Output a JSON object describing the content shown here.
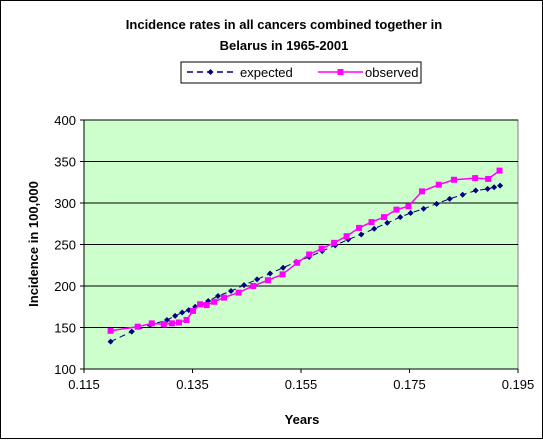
{
  "chart_data": {
    "type": "line",
    "title_lines": [
      "Incidence rates in all cancers combined together in",
      "Belarus in 1965-2001"
    ],
    "xlabel": "Years",
    "ylabel": "Incidence in 100,000",
    "xlim": [
      0.115,
      0.195
    ],
    "ylim": [
      100,
      400
    ],
    "x_ticks": [
      0.115,
      0.135,
      0.155,
      0.175,
      0.195
    ],
    "x_tick_labels": [
      "0.115",
      "0.135",
      "0.155",
      "0.175",
      "0.195"
    ],
    "y_ticks": [
      100,
      150,
      200,
      250,
      300,
      350,
      400
    ],
    "y_tick_labels": [
      "100",
      "150",
      "200",
      "250",
      "300",
      "350",
      "400"
    ],
    "grid": "horizontal",
    "legend_position": "top",
    "plot_background": "#ccffcc",
    "series": [
      {
        "name": "expected",
        "color": "#000080",
        "style": "dashed",
        "marker": "diamond",
        "points": [
          [
            0.1199,
            133
          ],
          [
            0.1238,
            145
          ],
          [
            0.1272,
            153
          ],
          [
            0.1303,
            159
          ],
          [
            0.1318,
            164
          ],
          [
            0.1331,
            168
          ],
          [
            0.1343,
            171
          ],
          [
            0.1355,
            175
          ],
          [
            0.1367,
            178
          ],
          [
            0.1379,
            182
          ],
          [
            0.1397,
            188
          ],
          [
            0.1421,
            194
          ],
          [
            0.1445,
            201
          ],
          [
            0.1469,
            208
          ],
          [
            0.1493,
            215
          ],
          [
            0.1517,
            222
          ],
          [
            0.1541,
            229
          ],
          [
            0.1565,
            235
          ],
          [
            0.1589,
            242
          ],
          [
            0.1613,
            249
          ],
          [
            0.1637,
            256
          ],
          [
            0.1661,
            262
          ],
          [
            0.1685,
            269
          ],
          [
            0.1709,
            276
          ],
          [
            0.1733,
            283
          ],
          [
            0.1752,
            288
          ],
          [
            0.1776,
            293
          ],
          [
            0.18,
            299
          ],
          [
            0.1824,
            305
          ],
          [
            0.1848,
            310
          ],
          [
            0.1872,
            315
          ],
          [
            0.1894,
            317
          ],
          [
            0.1906,
            319
          ],
          [
            0.1917,
            321
          ]
        ]
      },
      {
        "name": "observed",
        "color": "#ff00ff",
        "style": "solid",
        "marker": "square",
        "points": [
          [
            0.1199,
            146
          ],
          [
            0.1249,
            151
          ],
          [
            0.1275,
            155
          ],
          [
            0.1297,
            154
          ],
          [
            0.1312,
            155
          ],
          [
            0.1325,
            156
          ],
          [
            0.1339,
            159
          ],
          [
            0.1351,
            170
          ],
          [
            0.1364,
            178
          ],
          [
            0.1376,
            177
          ],
          [
            0.139,
            181
          ],
          [
            0.1408,
            186
          ],
          [
            0.1435,
            192
          ],
          [
            0.1462,
            200
          ],
          [
            0.1489,
            207
          ],
          [
            0.1516,
            214
          ],
          [
            0.1543,
            228
          ],
          [
            0.1565,
            238
          ],
          [
            0.1588,
            245
          ],
          [
            0.1611,
            252
          ],
          [
            0.1634,
            260
          ],
          [
            0.1657,
            270
          ],
          [
            0.168,
            277
          ],
          [
            0.1703,
            283
          ],
          [
            0.1726,
            292
          ],
          [
            0.1748,
            296
          ],
          [
            0.1773,
            314
          ],
          [
            0.1804,
            322
          ],
          [
            0.1832,
            328
          ],
          [
            0.1871,
            330
          ],
          [
            0.1895,
            329
          ],
          [
            0.1916,
            339
          ]
        ]
      }
    ]
  }
}
